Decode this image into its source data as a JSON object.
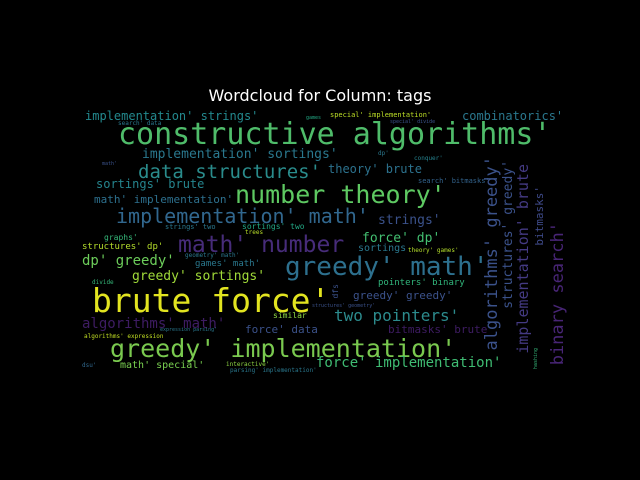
{
  "chart_data": {
    "type": "wordcloud",
    "title": "Wordcloud for Column: tags",
    "words": [
      {
        "text": "constructive algorithms'",
        "color": "#4fbc6a"
      },
      {
        "text": "brute force'",
        "color": "#e2e420"
      },
      {
        "text": "greedy' implementation'",
        "color": "#7ac94f"
      },
      {
        "text": "greedy' math'",
        "color": "#2d708e"
      },
      {
        "text": "number theory'",
        "color": "#5ec962"
      },
      {
        "text": "math' number",
        "color": "#472c7a"
      },
      {
        "text": "implementation' math'",
        "color": "#31678e"
      },
      {
        "text": "data structures'",
        "color": "#2a8c8c"
      },
      {
        "text": "algorithms' greedy'",
        "color": "#3b528b"
      },
      {
        "text": "binary search'",
        "color": "#482576"
      },
      {
        "text": "implementation' brute",
        "color": "#443a83"
      },
      {
        "text": "two pointers'",
        "color": "#2c8b8d"
      },
      {
        "text": "force' implementation'",
        "color": "#3fbc73"
      },
      {
        "text": "algorithms' math'",
        "color": "#3e1c63"
      },
      {
        "text": "implementation' sortings'",
        "color": "#2a788e"
      },
      {
        "text": "implementation' strings'",
        "color": "#23898e"
      },
      {
        "text": "combinatorics'",
        "color": "#2a788e"
      },
      {
        "text": "sortings' brute",
        "color": "#25858e"
      },
      {
        "text": "math' implementation'",
        "color": "#2d708e"
      },
      {
        "text": "strings'",
        "color": "#3b528b"
      },
      {
        "text": "dp' greedy'",
        "color": "#6ccd5a"
      },
      {
        "text": "greedy' sortings'",
        "color": "#a0da39"
      },
      {
        "text": "force' dp'",
        "color": "#43bf71"
      },
      {
        "text": "theory' brute",
        "color": "#2c728e"
      },
      {
        "text": "structures' greedy'",
        "color": "#3b528b"
      },
      {
        "text": "bitmasks'",
        "color": "#3e4a89"
      },
      {
        "text": "greedy' greedy'",
        "color": "#3b528b"
      },
      {
        "text": "force' data",
        "color": "#3b528b"
      },
      {
        "text": "bitmasks' brute",
        "color": "#3e1c63"
      },
      {
        "text": "math' special'",
        "color": "#7ad151"
      },
      {
        "text": "sortings",
        "color": "#2a788e"
      },
      {
        "text": "pointers' binary",
        "color": "#31b57b"
      },
      {
        "text": "games' math'",
        "color": "#2a788e"
      },
      {
        "text": "structures' dp'",
        "color": "#b5de2b"
      },
      {
        "text": "graphs'",
        "color": "#35b779"
      },
      {
        "text": "strings' two",
        "color": "#2a788e"
      },
      {
        "text": "sortings' two",
        "color": "#22a884"
      },
      {
        "text": "trees",
        "color": "#b8de29"
      },
      {
        "text": "similar",
        "color": "#8fd744"
      },
      {
        "text": "special' implementation'",
        "color": "#bddf26"
      },
      {
        "text": "search' bitmasks'",
        "color": "#33638d"
      },
      {
        "text": "theory' games'",
        "color": "#b5de2b"
      },
      {
        "text": "geometry' math'",
        "color": "#2a788e"
      },
      {
        "text": "algorithms' expression",
        "color": "#c2df23"
      },
      {
        "text": "expression parsing'",
        "color": "#2a788e"
      },
      {
        "text": "interactive'",
        "color": "#8fd744"
      },
      {
        "text": "parsing' implementation'",
        "color": "#2a788e"
      },
      {
        "text": "dfs",
        "color": "#3b528b"
      },
      {
        "text": "divide",
        "color": "#35b779"
      },
      {
        "text": "conquer'",
        "color": "#26828e"
      },
      {
        "text": "search' data",
        "color": "#2a788e"
      },
      {
        "text": "special' divide",
        "color": "#3b528b"
      },
      {
        "text": "structures' geometry'",
        "color": "#3b528b"
      },
      {
        "text": "hashing",
        "color": "#35b779"
      },
      {
        "text": "dsu'",
        "color": "#31688e"
      },
      {
        "text": "math'",
        "color": "#3b528b"
      },
      {
        "text": "dp'",
        "color": "#2a788e"
      },
      {
        "text": "games",
        "color": "#22a884"
      }
    ]
  }
}
